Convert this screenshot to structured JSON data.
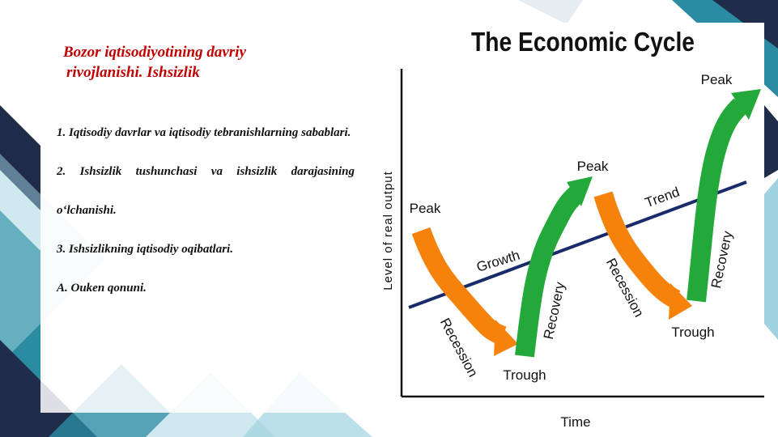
{
  "slide": {
    "title_lines": [
      "Bozor iqtisodiyotining davriy",
      "rivojlanishi. Ishsizlik"
    ],
    "items": [
      "1. Iqtisodiy davrlar va iqtisodiy tebranishlarning sabablari.",
      "2. Ishsizlik tushunchasi va ishsizlik darajasining o‘lchanishi.",
      "3. Ishsizlikning iqtisodiy oqibatlari.",
      "A. Ouken qonuni."
    ]
  },
  "diagram": {
    "title": "The Economic Cycle",
    "y_axis_label": "Level of real output",
    "x_axis_label": "Time",
    "labels": [
      "Peak",
      "Peak",
      "Peak",
      "Trough",
      "Trough",
      "Growth",
      "Trend",
      "Recession",
      "Recession",
      "Recovery",
      "Recovery"
    ]
  }
}
